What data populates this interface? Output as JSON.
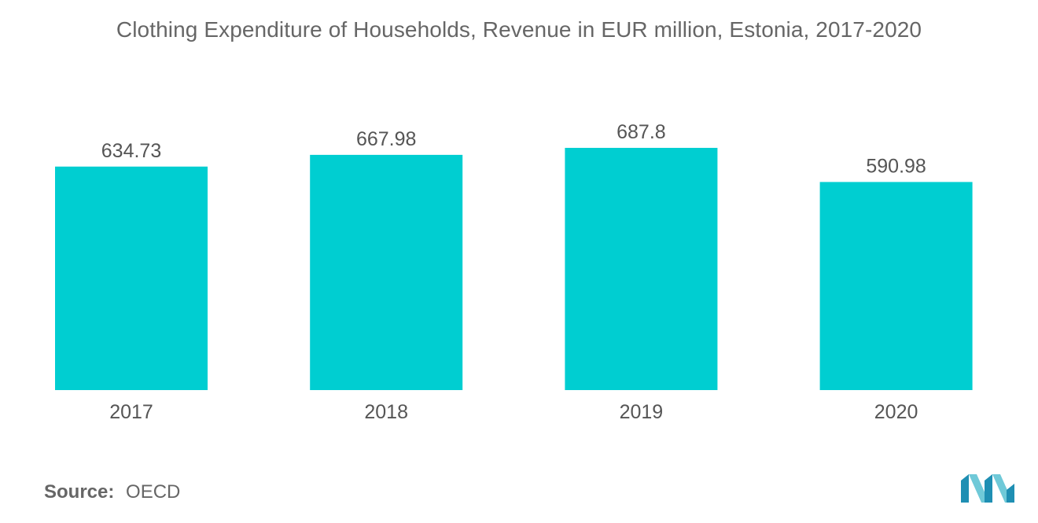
{
  "chart_data": {
    "type": "bar",
    "title": "Clothing Expenditure of Households, Revenue in EUR million, Estonia, 2017-2020",
    "categories": [
      "2017",
      "2018",
      "2019",
      "2020"
    ],
    "values": [
      634.73,
      667.98,
      687.8,
      590.98
    ],
    "value_labels": [
      "634.73",
      "667.98",
      "687.8",
      "590.98"
    ],
    "xlabel": "",
    "ylabel": "",
    "ylim": [
      0,
      700
    ],
    "grid": false,
    "legend": "none",
    "bar_color": "#00CED1"
  },
  "source": {
    "label": "Source:",
    "value": "OECD"
  },
  "logo": {
    "icon": "mordor-intelligence-logo-icon",
    "colors": [
      "#1F8FB3",
      "#6FC9D8"
    ]
  }
}
